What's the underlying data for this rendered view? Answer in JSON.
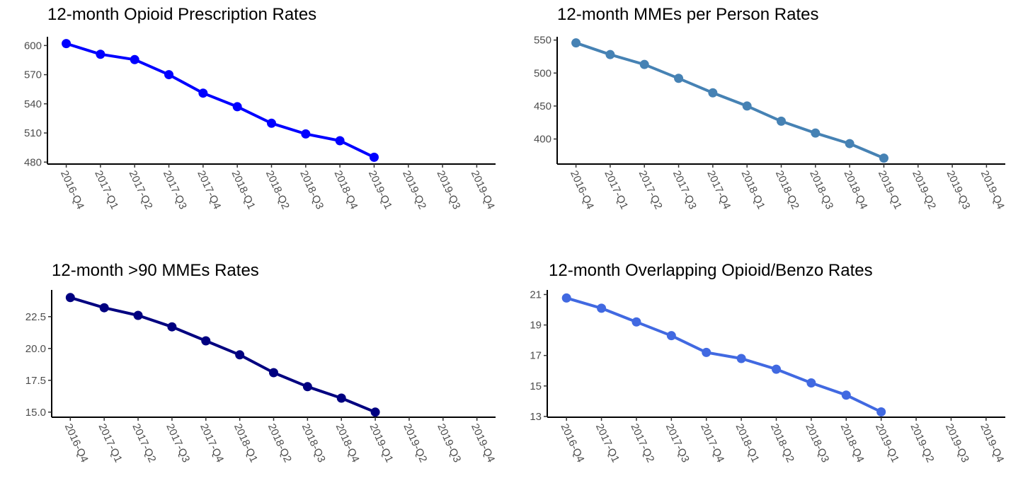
{
  "chart_data": [
    {
      "type": "line",
      "title": "12-month Opioid Prescription Rates",
      "categories": [
        "2016-Q4",
        "2017-Q1",
        "2017-Q2",
        "2017-Q3",
        "2017-Q4",
        "2018-Q1",
        "2018-Q2",
        "2018-Q3",
        "2018-Q4",
        "2019-Q1",
        "2019-Q2",
        "2019-Q3",
        "2019-Q4"
      ],
      "values": [
        602,
        591,
        585.5,
        570,
        551,
        537,
        520,
        509,
        502,
        485,
        null,
        null,
        null
      ],
      "color": "#0000ff",
      "ylim": [
        478,
        609
      ],
      "yticks": [
        480,
        510,
        540,
        570,
        600
      ]
    },
    {
      "type": "line",
      "title": "12-month MMEs per Person Rates",
      "categories": [
        "2016-Q4",
        "2017-Q1",
        "2017-Q2",
        "2017-Q3",
        "2017-Q4",
        "2018-Q1",
        "2018-Q2",
        "2018-Q3",
        "2018-Q4",
        "2019-Q1",
        "2019-Q2",
        "2019-Q3",
        "2019-Q4"
      ],
      "values": [
        545.7,
        528,
        513,
        492,
        470,
        450,
        427,
        409,
        393,
        371,
        null,
        null,
        null
      ],
      "color": "#4682b4",
      "ylim": [
        362,
        555
      ],
      "yticks": [
        400,
        450,
        500,
        550
      ]
    },
    {
      "type": "line",
      "title": "12-month >90 MMEs Rates",
      "categories": [
        "2016-Q4",
        "2017-Q1",
        "2017-Q2",
        "2017-Q3",
        "2017-Q4",
        "2018-Q1",
        "2018-Q2",
        "2018-Q3",
        "2018-Q4",
        "2019-Q1",
        "2019-Q2",
        "2019-Q3",
        "2019-Q4"
      ],
      "values": [
        24.0,
        23.2,
        22.6,
        21.7,
        20.6,
        19.5,
        18.1,
        17.0,
        16.1,
        15.0,
        null,
        null,
        null
      ],
      "color": "#000080",
      "ylim": [
        14.6,
        24.6
      ],
      "yticks": [
        {
          "value": 15,
          "label": "15.0"
        },
        17.5,
        {
          "value": 20,
          "label": "20.0"
        },
        22.5
      ]
    },
    {
      "type": "line",
      "title": "12-month Overlapping Opioid/Benzo Rates",
      "categories": [
        "2016-Q4",
        "2017-Q1",
        "2017-Q2",
        "2017-Q3",
        "2017-Q4",
        "2018-Q1",
        "2018-Q2",
        "2018-Q3",
        "2018-Q4",
        "2019-Q1",
        "2019-Q2",
        "2019-Q3",
        "2019-Q4"
      ],
      "values": [
        20.77,
        20.1,
        19.2,
        18.3,
        17.2,
        16.8,
        16.1,
        15.2,
        14.4,
        13.3,
        null,
        null,
        null
      ],
      "color": "#4169e1",
      "ylim": [
        12.95,
        21.3
      ],
      "yticks": [
        13,
        15,
        17,
        19,
        21
      ]
    }
  ]
}
